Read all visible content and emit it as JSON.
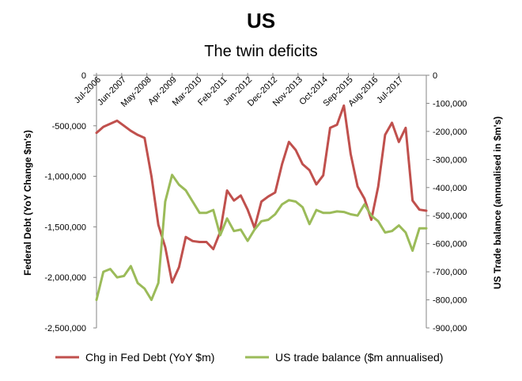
{
  "chart_data": {
    "type": "line",
    "title": "US",
    "subtitle": "The twin deficits",
    "ylabel_left": "Federal Debt (YoY Change $m's)",
    "ylabel_right": "US Trade balance (annualised in $m's)",
    "y_left": {
      "min": -2500000,
      "max": 0,
      "step": 500000,
      "tick_labels": [
        "0",
        "-500,000",
        "-1,000,000",
        "-1,500,000",
        "-2,000,000",
        "-2,500,000"
      ]
    },
    "y_right": {
      "min": -900000,
      "max": 0,
      "step": 100000,
      "tick_labels": [
        "0",
        "-100,000",
        "-200,000",
        "-300,000",
        "-400,000",
        "-500,000",
        "-600,000",
        "-700,000",
        "-800,000",
        "-900,000"
      ]
    },
    "x_tick_labels": [
      "Jul-2006",
      "Jun-2007",
      "May-2008",
      "Apr-2009",
      "Mar-2010",
      "Feb-2011",
      "Jan-2012",
      "Dec-2012",
      "Nov-2013",
      "Oct-2014",
      "Sep-2015",
      "Aug-2016",
      "Jul-2017"
    ],
    "x_tick_positions": [
      0,
      11,
      22,
      33,
      44,
      55,
      66,
      77,
      88,
      99,
      110,
      121,
      132
    ],
    "x_range": [
      0,
      144
    ],
    "series": [
      {
        "name": "Chg in Fed Debt (YoY $m)",
        "color": "#c0504d",
        "axis": "left",
        "x": [
          0,
          3,
          6,
          9,
          12,
          15,
          18,
          21,
          24,
          27,
          30,
          33,
          36,
          39,
          42,
          45,
          48,
          51,
          54,
          57,
          60,
          63,
          66,
          69,
          72,
          75,
          78,
          81,
          84,
          87,
          90,
          93,
          96,
          99,
          102,
          105,
          108,
          111,
          114,
          117,
          120,
          123,
          126,
          129,
          132,
          135,
          138,
          141,
          144
        ],
        "values": [
          -570000,
          -510000,
          -480000,
          -450000,
          -500000,
          -550000,
          -590000,
          -620000,
          -1000000,
          -1480000,
          -1700000,
          -2050000,
          -1900000,
          -1600000,
          -1640000,
          -1650000,
          -1650000,
          -1720000,
          -1550000,
          -1140000,
          -1240000,
          -1190000,
          -1330000,
          -1510000,
          -1250000,
          -1200000,
          -1160000,
          -880000,
          -660000,
          -740000,
          -880000,
          -940000,
          -1080000,
          -990000,
          -520000,
          -490000,
          -300000,
          -780000,
          -1100000,
          -1220000,
          -1430000,
          -1100000,
          -590000,
          -470000,
          -660000,
          -520000,
          -1240000,
          -1330000,
          -1340000
        ]
      },
      {
        "name": "US trade balance ($m annualised)",
        "color": "#9bbb59",
        "axis": "right",
        "x": [
          0,
          3,
          6,
          9,
          12,
          15,
          18,
          21,
          24,
          27,
          30,
          33,
          36,
          39,
          42,
          45,
          48,
          51,
          54,
          57,
          60,
          63,
          66,
          69,
          72,
          75,
          78,
          81,
          84,
          87,
          90,
          93,
          96,
          99,
          102,
          105,
          108,
          111,
          114,
          117,
          120,
          123,
          126,
          129,
          132,
          135,
          138,
          141,
          144
        ],
        "values": [
          -800000,
          -700000,
          -690000,
          -720000,
          -715000,
          -680000,
          -740000,
          -760000,
          -800000,
          -740000,
          -450000,
          -355000,
          -390000,
          -410000,
          -450000,
          -490000,
          -490000,
          -480000,
          -570000,
          -510000,
          -555000,
          -550000,
          -590000,
          -550000,
          -520000,
          -515000,
          -495000,
          -460000,
          -445000,
          -450000,
          -470000,
          -530000,
          -480000,
          -490000,
          -490000,
          -485000,
          -487000,
          -495000,
          -500000,
          -460000,
          -500000,
          -520000,
          -560000,
          -555000,
          -535000,
          -560000,
          -625000,
          -545000,
          -545000
        ]
      }
    ],
    "legend_position": "bottom",
    "grid": false
  }
}
